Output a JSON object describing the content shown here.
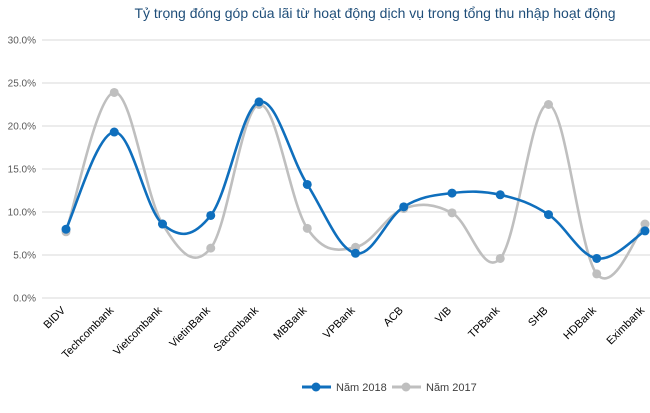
{
  "chart_data": {
    "type": "line",
    "title": "Tỷ trọng đóng góp của lãi từ hoạt động dịch vụ trong tổng thu nhập hoạt động",
    "categories": [
      "BIDV",
      "Techcombank",
      "Vietcombank",
      "VietinBank",
      "Sacombank",
      "MBBank",
      "VPBank",
      "ACB",
      "VIB",
      "TPBank",
      "SHB",
      "HDBank",
      "Eximbank"
    ],
    "series": [
      {
        "name": "Năm 2018",
        "color": "#0f6fbd",
        "values": [
          8.0,
          19.3,
          8.6,
          9.6,
          22.8,
          13.2,
          5.2,
          10.6,
          12.2,
          12.0,
          9.7,
          4.6,
          7.8
        ]
      },
      {
        "name": "Năm 2017",
        "color": "#bfbfbf",
        "values": [
          7.7,
          23.9,
          8.6,
          5.8,
          22.5,
          8.1,
          5.9,
          10.4,
          9.9,
          4.6,
          22.5,
          2.8,
          8.6
        ]
      }
    ],
    "yticks": [
      "0.0%",
      "5.0%",
      "10.0%",
      "15.0%",
      "20.0%",
      "25.0%",
      "30.0%"
    ],
    "ylim": [
      0,
      30
    ],
    "xlabel": "",
    "ylabel": "",
    "grid": true,
    "legend_position": "bottom"
  }
}
